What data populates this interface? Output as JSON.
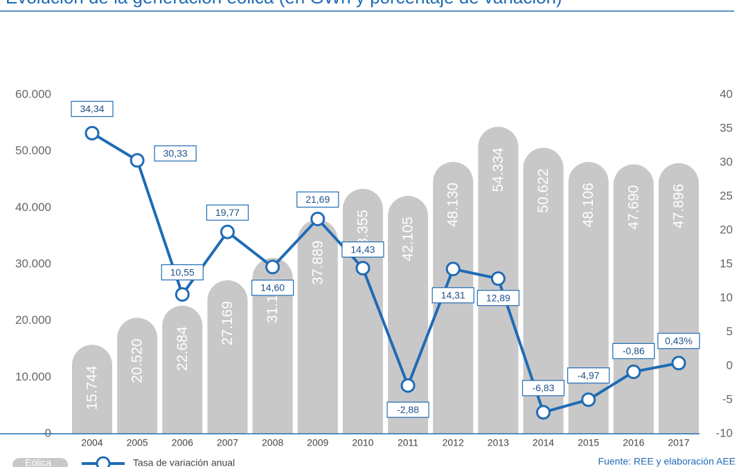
{
  "chart_data": {
    "type": "bar_line",
    "title": "Evolución de la generación eólica (en GWh y porcentaje de variación)",
    "categories": [
      "2004",
      "2005",
      "2006",
      "2007",
      "2008",
      "2009",
      "2010",
      "2011",
      "2012",
      "2013",
      "2014",
      "2015",
      "2016",
      "2017"
    ],
    "series": [
      {
        "name": "Eólica",
        "type": "bar",
        "color": "#c8c8c8",
        "values": [
          15744,
          20520,
          22684,
          27169,
          31136,
          37889,
          43355,
          42105,
          48130,
          54334,
          50622,
          48106,
          47690,
          47896
        ],
        "value_labels": [
          "15.744",
          "20.520",
          "22.684",
          "27.169",
          "31.136",
          "37.889",
          "43.355",
          "42.105",
          "48.130",
          "54.334",
          "50.622",
          "48.106",
          "47.690",
          "47.896"
        ]
      },
      {
        "name": "Tasa de variación anual",
        "type": "line",
        "axis": "y2",
        "color": "#1f6bb5",
        "values": [
          34.34,
          30.33,
          10.55,
          19.77,
          14.6,
          21.69,
          14.43,
          -2.88,
          14.31,
          12.89,
          -6.83,
          -4.97,
          -0.86,
          0.43
        ],
        "value_labels": [
          "34,34",
          "30,33",
          "10,55",
          "19,77",
          "14,60",
          "21,69",
          "14,43",
          "-2,88",
          "14,31",
          "12,89",
          "-6,83",
          "-4,97",
          "-0,86",
          "0,43%"
        ]
      }
    ],
    "ylim": [
      0,
      60000
    ],
    "yticks": [
      0,
      {
        "value": 10000,
        "label": "10.000"
      },
      {
        "value": 20000,
        "label": "20.000"
      },
      {
        "value": 30000,
        "label": "30.000"
      },
      {
        "value": 40000,
        "label": "40.000"
      },
      {
        "value": 50000,
        "label": "50.000"
      },
      {
        "value": 60000,
        "label": "60.000"
      }
    ],
    "y2lim": [
      -10,
      40
    ],
    "y2ticks": [
      -10,
      -5,
      0,
      5,
      10,
      15,
      20,
      25,
      30,
      35,
      40
    ],
    "source": "Fuente: REE y elaboración AEE"
  }
}
